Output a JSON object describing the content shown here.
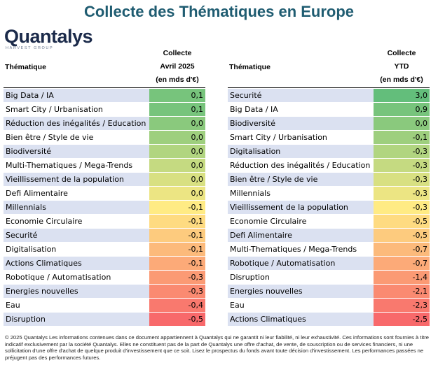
{
  "title": "Collecte des Thématiques en Europe",
  "logo": {
    "name": "Quantalys",
    "subtitle": "HARVEST GROUP"
  },
  "left_table": {
    "col_label": "Thématique",
    "value_header": [
      "Collecte",
      "Avril 2025",
      "(en mds d'€)"
    ]
  },
  "right_table": {
    "col_label": "Thématique",
    "value_header": [
      "Collecte",
      "YTD",
      "(en mds d'€)"
    ]
  },
  "colors": {
    "scale_high": "#63be7b",
    "scale_mid": "#ffeb84",
    "scale_low": "#f8696b",
    "row_band": "#dbe1f1",
    "title": "#1f5c71"
  },
  "chart_data": [
    {
      "type": "table",
      "title": "Collecte Avril 2025 (en mds d'€)",
      "rows": [
        {
          "label": "Big Data / IA",
          "value": "0,1",
          "num": 0.1
        },
        {
          "label": "Smart City / Urbanisation",
          "value": "0,1",
          "num": 0.1
        },
        {
          "label": "Réduction des inégalités / Education",
          "value": "0,0",
          "num": 0.03
        },
        {
          "label": "Bien être / Style de vie",
          "value": "0,0",
          "num": 0.02
        },
        {
          "label": "Biodiversité",
          "value": "0,0",
          "num": 0.01
        },
        {
          "label": "Multi-Thematiques / Mega-Trends",
          "value": "0,0",
          "num": 0.0
        },
        {
          "label": "Vieillissement de la population",
          "value": "0,0",
          "num": -0.01
        },
        {
          "label": "Defi Alimentaire",
          "value": "0,0",
          "num": -0.02
        },
        {
          "label": "Millennials",
          "value": "-0,1",
          "num": -0.06
        },
        {
          "label": "Economie Circulaire",
          "value": "-0,1",
          "num": -0.07
        },
        {
          "label": "Securité",
          "value": "-0,1",
          "num": -0.08
        },
        {
          "label": "Digitalisation",
          "value": "-0,1",
          "num": -0.12
        },
        {
          "label": "Actions Climatiques",
          "value": "-0,1",
          "num": -0.14
        },
        {
          "label": "Robotique / Automatisation",
          "value": "-0,3",
          "num": -0.3
        },
        {
          "label": "Energies nouvelles",
          "value": "-0,3",
          "num": -0.33
        },
        {
          "label": "Eau",
          "value": "-0,4",
          "num": -0.4
        },
        {
          "label": "Disruption",
          "value": "-0,5",
          "num": -0.5
        }
      ]
    },
    {
      "type": "table",
      "title": "Collecte YTD (en mds d'€)",
      "rows": [
        {
          "label": "Securité",
          "value": "3,0",
          "num": 3.0
        },
        {
          "label": "Big Data / IA",
          "value": "0,9",
          "num": 0.9
        },
        {
          "label": "Biodiversité",
          "value": "0,0",
          "num": 0.0
        },
        {
          "label": "Smart City / Urbanisation",
          "value": "-0,1",
          "num": -0.1
        },
        {
          "label": "Digitalisation",
          "value": "-0,3",
          "num": -0.25
        },
        {
          "label": "Réduction des inégalités / Education",
          "value": "-0,3",
          "num": -0.27
        },
        {
          "label": "Bien être / Style de vie",
          "value": "-0,3",
          "num": -0.28
        },
        {
          "label": "Millennials",
          "value": "-0,3",
          "num": -0.3
        },
        {
          "label": "Vieillissement de la population",
          "value": "-0,3",
          "num": -0.32
        },
        {
          "label": "Economie Circulaire",
          "value": "-0,5",
          "num": -0.5
        },
        {
          "label": "Defi Alimentaire",
          "value": "-0,5",
          "num": -0.52
        },
        {
          "label": "Multi-Thematiques / Mega-Trends",
          "value": "-0,7",
          "num": -0.7
        },
        {
          "label": "Robotique / Automatisation",
          "value": "-0,7",
          "num": -0.72
        },
        {
          "label": "Disruption",
          "value": "-1,4",
          "num": -1.4
        },
        {
          "label": "Energies nouvelles",
          "value": "-2,1",
          "num": -2.1
        },
        {
          "label": "Eau",
          "value": "-2,3",
          "num": -2.3
        },
        {
          "label": "Actions Climatiques",
          "value": "-2,5",
          "num": -2.5
        }
      ]
    }
  ],
  "footer": "© 2025 Quantalys Les informations contenues dans ce document appartiennent à Quantalys qui ne garantit ni leur fiabilité, ni leur exhaustivité. Ces informations sont fournies à titre indicatif exclusivement par la société Quantalys. Elles ne constituent pas de la part de Quantalys une offre d'achat, de vente, de souscription ou de services financiers, ni une sollicitation d'une offre d'achat de quelque produit d'investissement que ce soit. Lisez le prospectus du fonds avant toute décision d'investissement. Les performances passées ne préjugent pas des performances futures."
}
